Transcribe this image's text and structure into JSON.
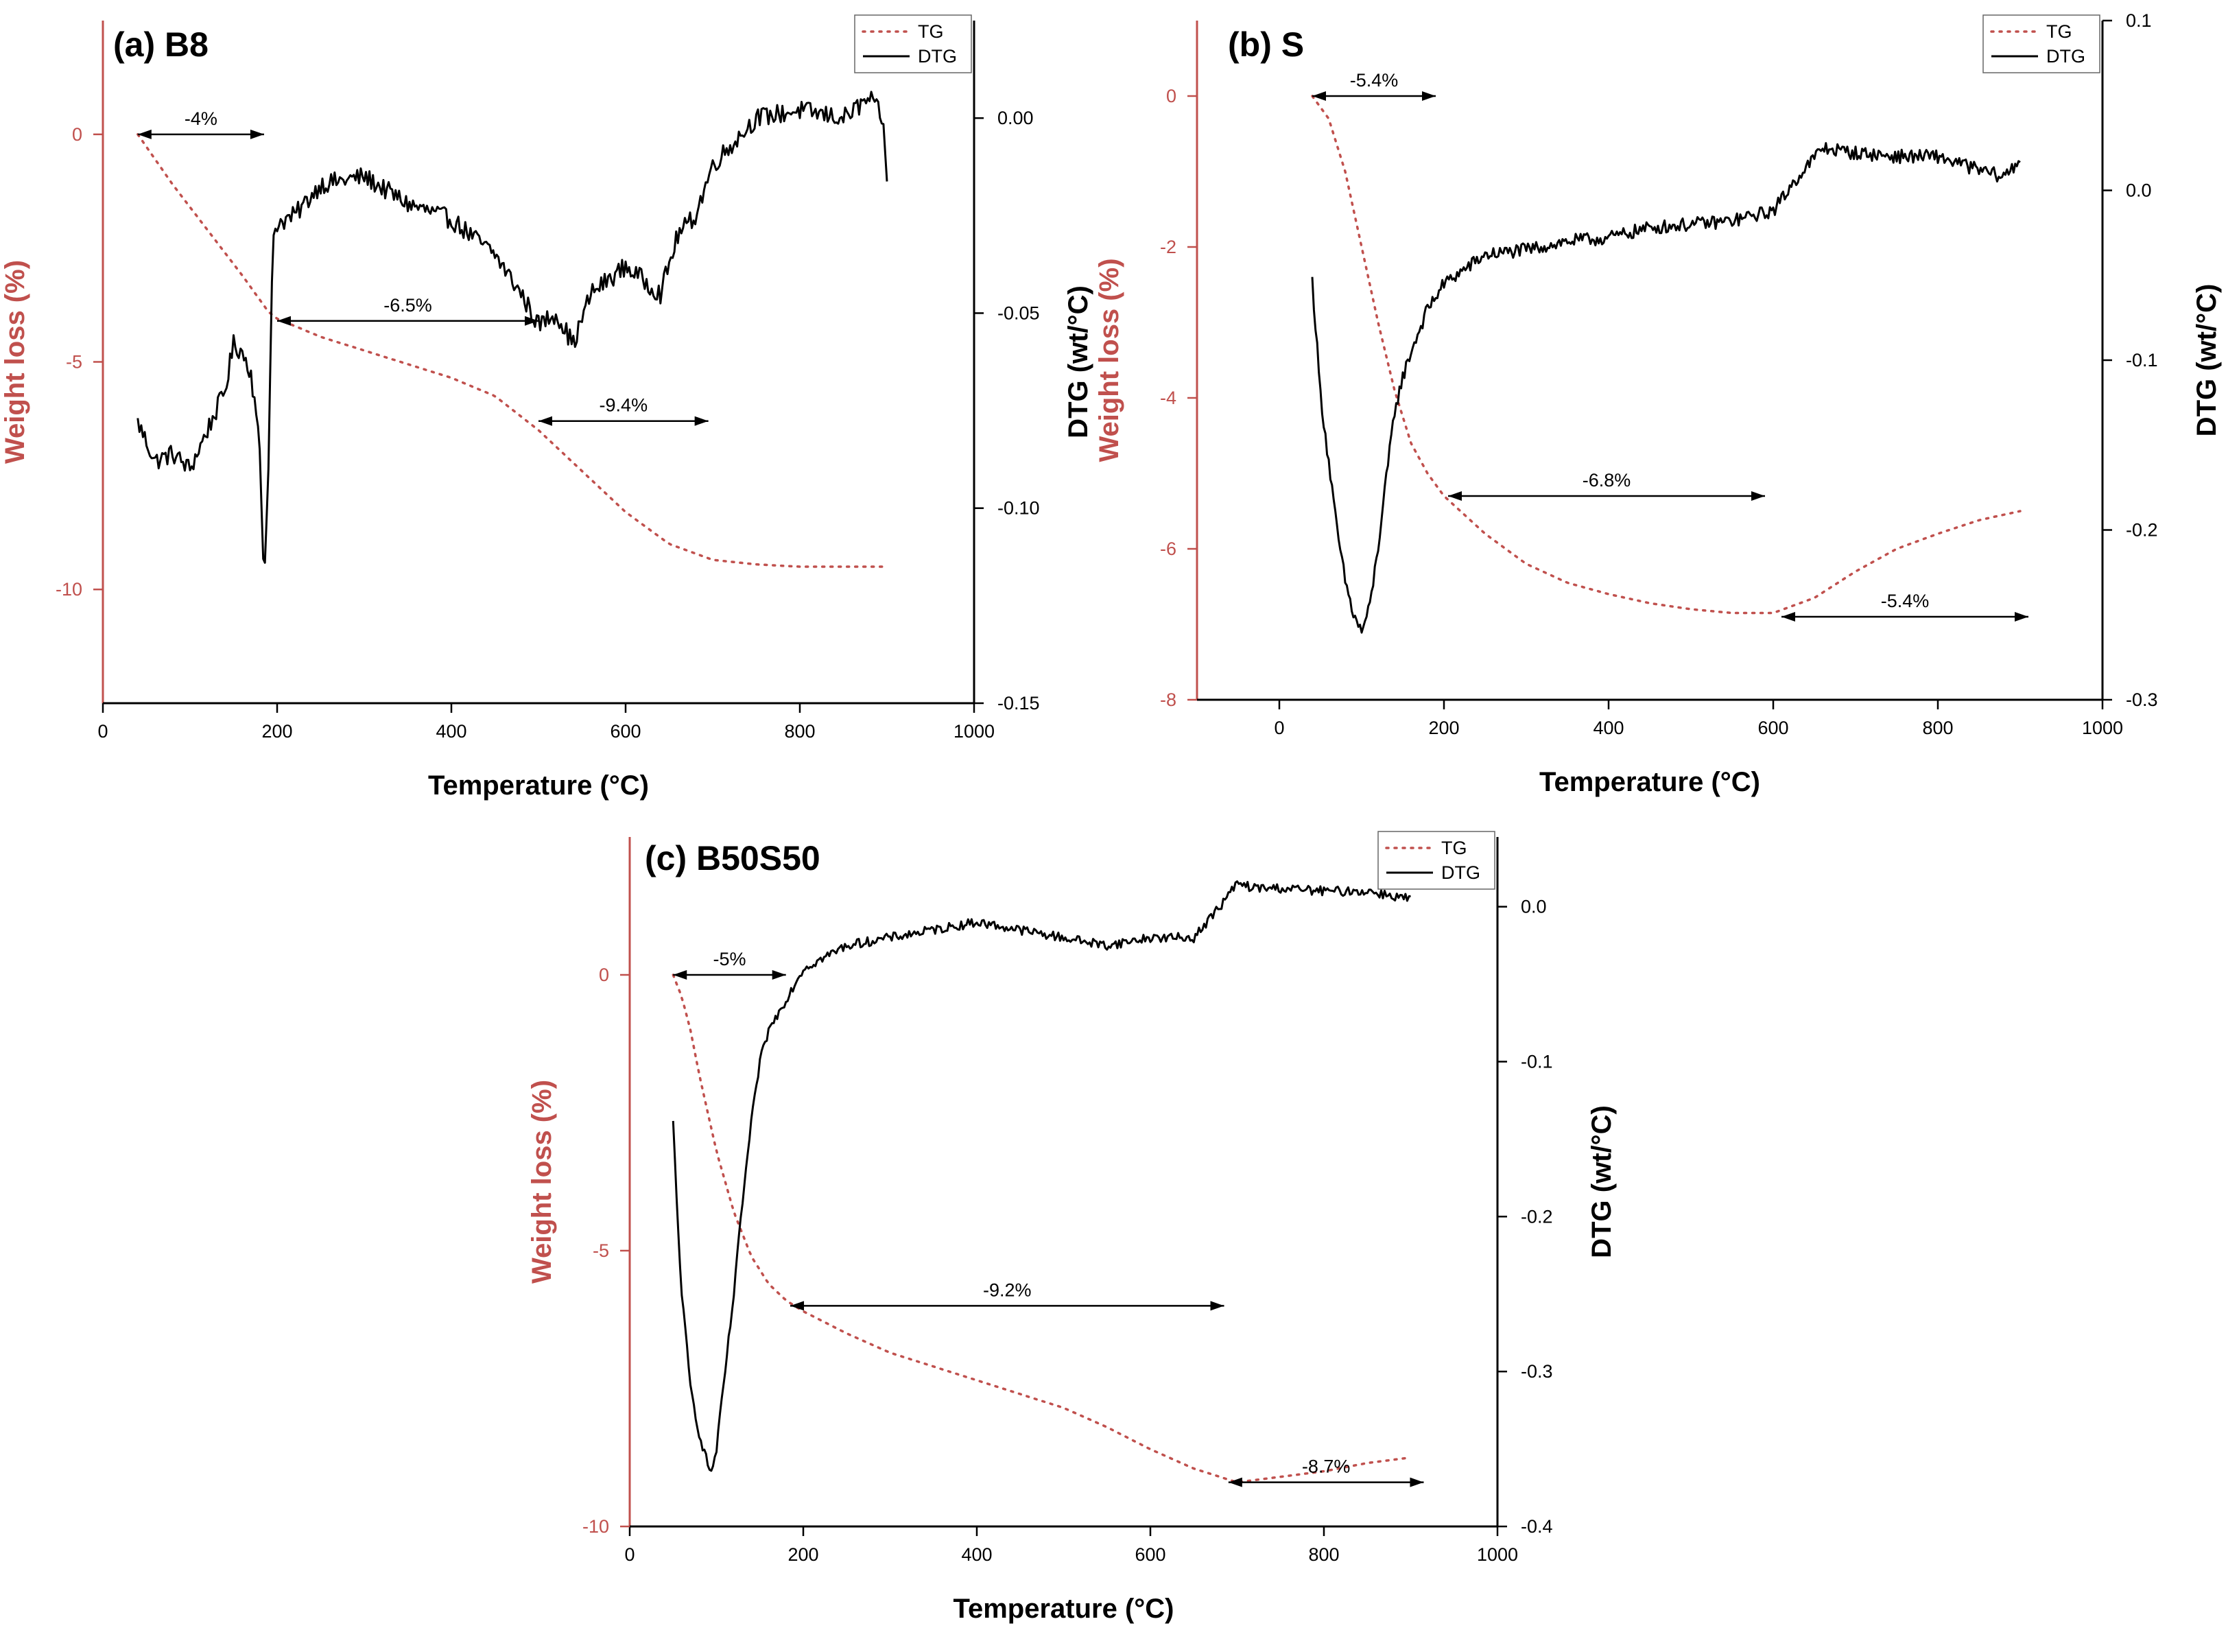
{
  "figure": {
    "panels_count": 3,
    "colors": {
      "tg": "#c0504d",
      "dtg": "#000000",
      "left_axis": "#c0504d",
      "right_axis": "#000000"
    }
  },
  "chart_data": [
    {
      "id": "a",
      "type": "line",
      "title": "(a) B8",
      "xlabel": "Temperature (°C)",
      "ylabel_left": "Weight loss (%)",
      "ylabel_right": "DTG (wt/°C)",
      "xlim": [
        0,
        1000
      ],
      "ylim_left": [
        -12.5,
        2.5
      ],
      "ylim_right": [
        -0.15,
        0.025
      ],
      "xticks": [
        0,
        200,
        400,
        600,
        800,
        1000
      ],
      "xtick_labels": [
        "0",
        "200",
        "400",
        "600",
        "800",
        "1000"
      ],
      "yticks_left": [
        0,
        -5,
        -10
      ],
      "ytick_labels_left": [
        "0",
        "-5",
        "-10"
      ],
      "yticks_right": [
        0.0,
        -0.05,
        -0.1,
        -0.15
      ],
      "ytick_labels_right": [
        "0.00",
        "-0.05",
        "-0.10",
        "-0.15"
      ],
      "grid": false,
      "legend": {
        "position": "top-right",
        "entries": [
          "TG",
          "DTG"
        ]
      },
      "series": [
        {
          "name": "TG",
          "axis": "left",
          "style": "dotted",
          "x": [
            40,
            80,
            120,
            160,
            190,
            200,
            250,
            300,
            350,
            400,
            450,
            500,
            550,
            600,
            650,
            700,
            750,
            800,
            850,
            900
          ],
          "y": [
            0,
            -1.1,
            -2.1,
            -3.1,
            -3.9,
            -4.05,
            -4.45,
            -4.75,
            -5.05,
            -5.35,
            -5.75,
            -6.5,
            -7.4,
            -8.3,
            -9.0,
            -9.35,
            -9.45,
            -9.5,
            -9.5,
            -9.5
          ]
        },
        {
          "name": "DTG",
          "axis": "right",
          "style": "solid",
          "noise": 0.0025,
          "x": [
            40,
            60,
            80,
            100,
            120,
            140,
            150,
            160,
            170,
            180,
            185,
            190,
            195,
            200,
            220,
            250,
            300,
            350,
            400,
            450,
            480,
            500,
            520,
            540,
            560,
            600,
            640,
            660,
            680,
            700,
            750,
            800,
            850,
            880,
            895,
            900
          ],
          "y": [
            -0.078,
            -0.088,
            -0.086,
            -0.09,
            -0.08,
            -0.07,
            -0.058,
            -0.06,
            -0.065,
            -0.085,
            -0.12,
            -0.09,
            -0.03,
            -0.027,
            -0.025,
            -0.017,
            -0.015,
            -0.022,
            -0.026,
            -0.035,
            -0.045,
            -0.053,
            -0.05,
            -0.058,
            -0.045,
            -0.038,
            -0.045,
            -0.03,
            -0.025,
            -0.012,
            0.0,
            0.002,
            0.0,
            0.005,
            0.0,
            -0.017
          ]
        }
      ],
      "annotations": [
        {
          "text": "-4%",
          "x1": 40,
          "x2": 185,
          "y": 0.0
        },
        {
          "text": "-6.5%",
          "x1": 200,
          "x2": 500,
          "y": -4.1
        },
        {
          "text": "-9.4%",
          "x1": 500,
          "x2": 695,
          "y": -6.3
        }
      ]
    },
    {
      "id": "b",
      "type": "line",
      "title": "(b) S",
      "xlabel": "Temperature (°C)",
      "ylabel_left": "Weight loss (%)",
      "ylabel_right": "DTG (wt/°C)",
      "xlim": [
        -100,
        1000
      ],
      "ylim_left": [
        -8,
        1
      ],
      "ylim_right": [
        -0.3,
        0.1
      ],
      "xticks": [
        0,
        200,
        400,
        600,
        800,
        1000
      ],
      "xtick_labels": [
        "0",
        "200",
        "400",
        "600",
        "800",
        "1000"
      ],
      "yticks_left": [
        0,
        -2,
        -4,
        -6,
        -8
      ],
      "ytick_labels_left": [
        "0",
        "-2",
        "-4",
        "-6",
        "-8"
      ],
      "yticks_right": [
        0.1,
        0.0,
        -0.1,
        -0.2,
        -0.3
      ],
      "ytick_labels_right": [
        "0.1",
        "0.0",
        "-0.1",
        "-0.2",
        "-0.3"
      ],
      "grid": false,
      "legend": {
        "position": "top-right",
        "entries": [
          "TG",
          "DTG"
        ]
      },
      "series": [
        {
          "name": "TG",
          "axis": "left",
          "style": "dotted",
          "x": [
            40,
            60,
            80,
            100,
            120,
            140,
            160,
            180,
            200,
            250,
            300,
            350,
            400,
            450,
            500,
            550,
            600,
            650,
            700,
            750,
            800,
            850,
            900
          ],
          "y": [
            0,
            -0.3,
            -1.0,
            -2.0,
            -3.0,
            -3.9,
            -4.6,
            -5.0,
            -5.3,
            -5.8,
            -6.2,
            -6.45,
            -6.6,
            -6.72,
            -6.8,
            -6.85,
            -6.85,
            -6.65,
            -6.3,
            -6.0,
            -5.8,
            -5.62,
            -5.5
          ]
        },
        {
          "name": "DTG",
          "axis": "right",
          "style": "solid",
          "noise": 0.004,
          "x": [
            40,
            50,
            60,
            70,
            80,
            90,
            100,
            110,
            120,
            130,
            140,
            150,
            160,
            180,
            200,
            250,
            300,
            350,
            400,
            450,
            500,
            550,
            600,
            630,
            660,
            700,
            750,
            800,
            850,
            880,
            900
          ],
          "y": [
            -0.053,
            -0.12,
            -0.16,
            -0.2,
            -0.23,
            -0.25,
            -0.26,
            -0.245,
            -0.21,
            -0.17,
            -0.13,
            -0.11,
            -0.095,
            -0.07,
            -0.055,
            -0.038,
            -0.035,
            -0.03,
            -0.028,
            -0.022,
            -0.02,
            -0.018,
            -0.012,
            0.008,
            0.025,
            0.022,
            0.02,
            0.02,
            0.012,
            0.008,
            0.018
          ]
        }
      ],
      "annotations": [
        {
          "text": "-5.4%",
          "x1": 40,
          "x2": 190,
          "y": 0.0
        },
        {
          "text": "-6.8%",
          "x1": 205,
          "x2": 590,
          "y": -5.3
        },
        {
          "text": "-5.4%",
          "x1": 610,
          "x2": 910,
          "y": -6.9
        }
      ]
    },
    {
      "id": "c",
      "type": "line",
      "title": "(c) B50S50",
      "xlabel": "Temperature (°C)",
      "ylabel_left": "Weight loss (%)",
      "ylabel_right": "DTG (wt/°C)",
      "xlim": [
        0,
        1000
      ],
      "ylim_left": [
        -10,
        2.5
      ],
      "ylim_right": [
        -0.4,
        0.045
      ],
      "xticks": [
        0,
        200,
        400,
        600,
        800,
        1000
      ],
      "xtick_labels": [
        "0",
        "200",
        "400",
        "600",
        "800",
        "1000"
      ],
      "yticks_left": [
        0,
        -5,
        -10
      ],
      "ytick_labels_left": [
        "0",
        "-5",
        "-10"
      ],
      "yticks_right": [
        0.0,
        -0.1,
        -0.2,
        -0.3,
        -0.4
      ],
      "ytick_labels_right": [
        "0.0",
        "-0.1",
        "-0.2",
        "-0.3",
        "-0.4"
      ],
      "grid": false,
      "legend": {
        "position": "top-right",
        "entries": [
          "TG",
          "DTG"
        ]
      },
      "series": [
        {
          "name": "TG",
          "axis": "left",
          "style": "dotted",
          "x": [
            50,
            60,
            70,
            80,
            100,
            120,
            140,
            160,
            180,
            200,
            250,
            300,
            350,
            400,
            450,
            500,
            550,
            600,
            650,
            700,
            750,
            800,
            850,
            900
          ],
          "y": [
            0,
            -0.4,
            -1.0,
            -1.8,
            -3.2,
            -4.3,
            -5.1,
            -5.6,
            -5.9,
            -6.1,
            -6.5,
            -6.85,
            -7.1,
            -7.35,
            -7.6,
            -7.85,
            -8.2,
            -8.6,
            -8.95,
            -9.2,
            -9.1,
            -9.0,
            -8.85,
            -8.75
          ]
        },
        {
          "name": "DTG",
          "axis": "right",
          "style": "solid",
          "noise": 0.003,
          "x": [
            50,
            55,
            60,
            70,
            80,
            90,
            95,
            100,
            110,
            120,
            130,
            140,
            150,
            160,
            170,
            180,
            200,
            250,
            300,
            350,
            400,
            450,
            500,
            550,
            600,
            650,
            680,
            700,
            720,
            750,
            800,
            850,
            900
          ],
          "y": [
            -0.14,
            -0.2,
            -0.25,
            -0.31,
            -0.34,
            -0.36,
            -0.365,
            -0.35,
            -0.3,
            -0.25,
            -0.19,
            -0.14,
            -0.1,
            -0.08,
            -0.07,
            -0.06,
            -0.04,
            -0.025,
            -0.02,
            -0.015,
            -0.01,
            -0.015,
            -0.02,
            -0.025,
            -0.02,
            -0.02,
            0.0,
            0.015,
            0.012,
            0.012,
            0.01,
            0.01,
            0.005
          ]
        }
      ],
      "annotations": [
        {
          "text": "-5%",
          "x1": 50,
          "x2": 180,
          "y": 0.0
        },
        {
          "text": "-9.2%",
          "x1": 185,
          "x2": 685,
          "y": -6.0
        },
        {
          "text": "-8.7%",
          "x1": 690,
          "x2": 915,
          "y": -9.2
        }
      ]
    }
  ]
}
